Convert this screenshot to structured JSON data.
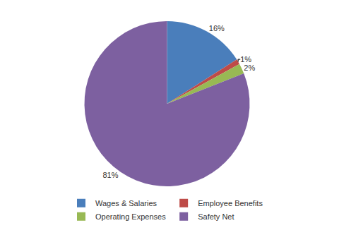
{
  "chart_data": {
    "type": "pie",
    "categories": [
      "Wages & Salaries",
      "Employee Benefits",
      "Operating Expenses",
      "Safety Net"
    ],
    "values": [
      16,
      1,
      2,
      81
    ],
    "value_labels": [
      "16%",
      "1%",
      "2%",
      "81%"
    ],
    "colors": [
      "#4a7ebb",
      "#be4b48",
      "#98b954",
      "#7d60a0"
    ],
    "data_labels": true,
    "legend": "bottom"
  }
}
